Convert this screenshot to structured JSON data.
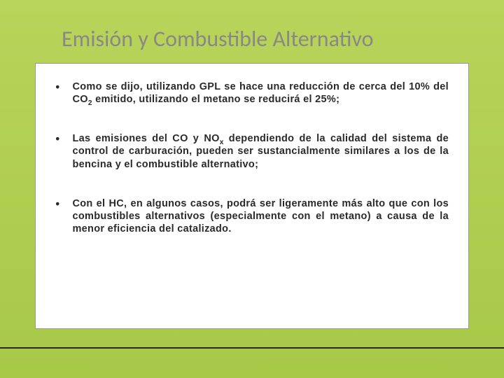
{
  "slide": {
    "title": "Emisión y Combustible Alternativo",
    "title_color": "#888888",
    "title_fontsize": 32,
    "background_gradient_top": "#b8d45a",
    "background_gradient_bottom": "#a8c848",
    "content_box": {
      "background": "#ffffff",
      "border_color": "#999999"
    },
    "bullets": [
      {
        "text_html": "Como se dijo, utilizando GPL se hace una reducción de cerca del 10% del CO<sub>2</sub> emitido, utilizando el metano se reducirá el 25%;"
      },
      {
        "text_html": "Las emisiones del CO y NO<sub>x</sub> dependiendo de la calidad del sistema de control de carburación, pueden ser sustancialmente similares a los de la bencina y el combustible alternativo;"
      },
      {
        "text_html": "Con el HC, en algunos casos, podrá ser ligeramente más alto que con los combustibles alternativos (especialmente con el metano) a causa de la menor eficiencia del catalizado."
      }
    ],
    "bullet_color": "#2a2a2a",
    "bullet_fontsize": 14.5,
    "line_color": "#2a2a2a"
  }
}
